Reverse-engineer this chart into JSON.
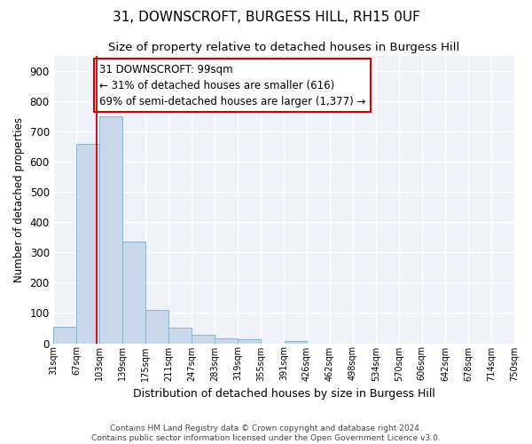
{
  "title": "31, DOWNSCROFT, BURGESS HILL, RH15 0UF",
  "subtitle": "Size of property relative to detached houses in Burgess Hill",
  "xlabel": "Distribution of detached houses by size in Burgess Hill",
  "ylabel": "Number of detached properties",
  "footnote1": "Contains HM Land Registry data © Crown copyright and database right 2024.",
  "footnote2": "Contains public sector information licensed under the Open Government Licence v3.0.",
  "bin_labels": [
    "31sqm",
    "67sqm",
    "103sqm",
    "139sqm",
    "175sqm",
    "211sqm",
    "247sqm",
    "283sqm",
    "319sqm",
    "355sqm",
    "391sqm",
    "426sqm",
    "462sqm",
    "498sqm",
    "534sqm",
    "570sqm",
    "606sqm",
    "642sqm",
    "678sqm",
    "714sqm",
    "750sqm"
  ],
  "bar_values": [
    55,
    660,
    750,
    335,
    110,
    52,
    27,
    15,
    14,
    0,
    8,
    0,
    0,
    0,
    0,
    0,
    0,
    0,
    0,
    0,
    0
  ],
  "bar_color": "#c8d8ea",
  "bar_edge_color": "#8ab4cc",
  "property_line_x": 99,
  "property_line_color": "#cc0000",
  "annotation_box_color": "#cc0000",
  "annotation_line1": "31 DOWNSCROFT: 99sqm",
  "annotation_line2": "← 31% of detached houses are smaller (616)",
  "annotation_line3": "69% of semi-detached houses are larger (1,377) →",
  "ylim": [
    0,
    950
  ],
  "yticks": [
    0,
    100,
    200,
    300,
    400,
    500,
    600,
    700,
    800,
    900
  ],
  "background_color": "#eef2f8",
  "grid_color": "#ffffff",
  "title_fontsize": 11,
  "subtitle_fontsize": 9.5,
  "annotation_fontsize": 8.5,
  "footnote_fontsize": 6.5,
  "ylabel_fontsize": 8.5,
  "xlabel_fontsize": 9,
  "xtick_fontsize": 7,
  "ytick_fontsize": 8.5,
  "bin_edges": [
    31,
    67,
    103,
    139,
    175,
    211,
    247,
    283,
    319,
    355,
    391,
    426,
    462,
    498,
    534,
    570,
    606,
    642,
    678,
    714,
    750
  ],
  "fig_bg": "#ffffff"
}
